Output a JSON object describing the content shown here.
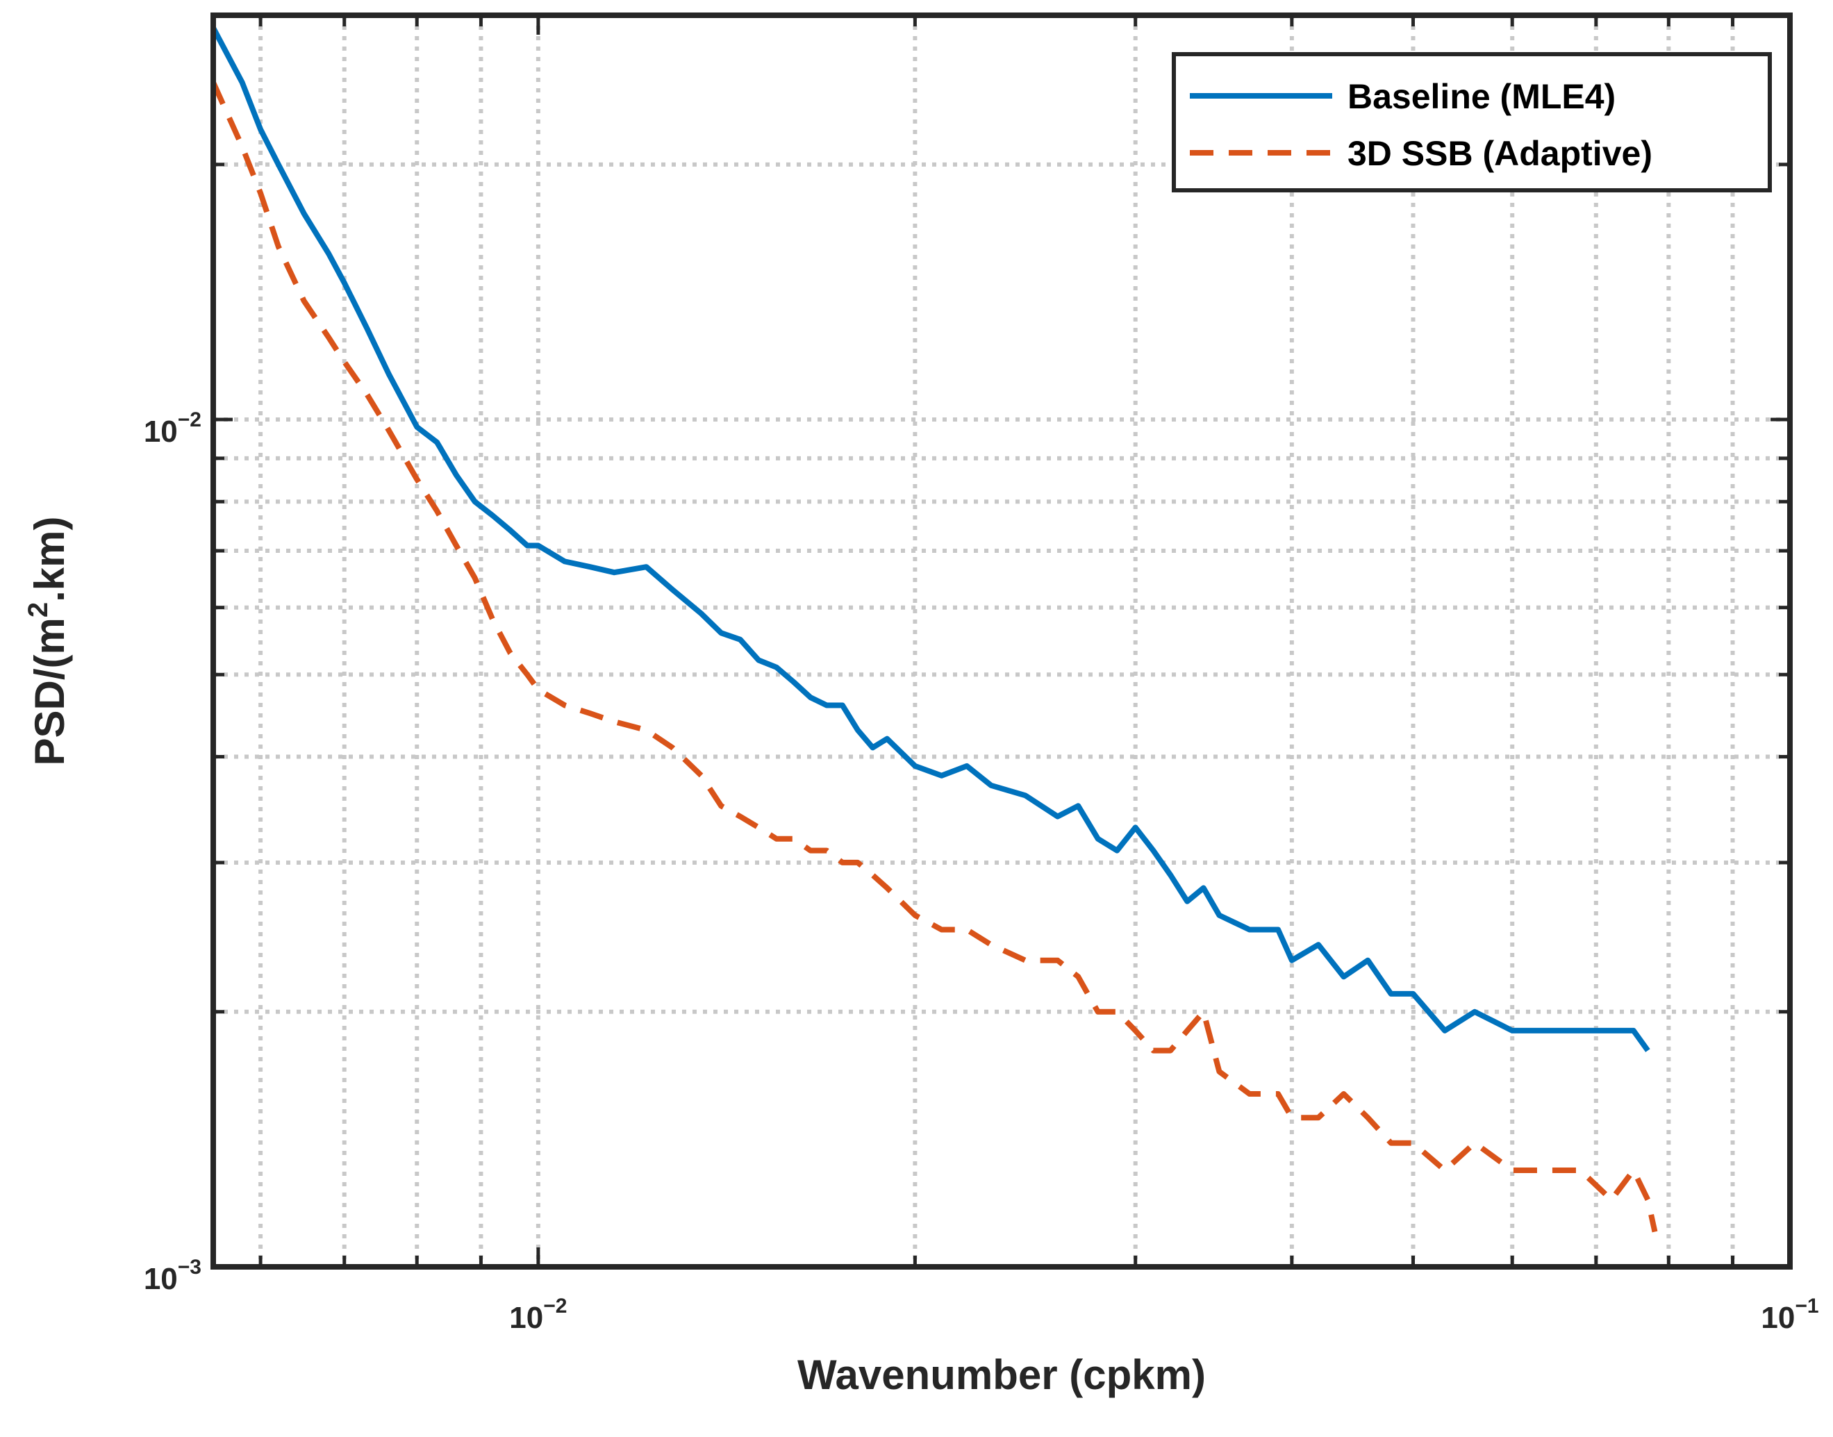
{
  "chart_data": {
    "type": "line",
    "xscale": "log",
    "yscale": "log",
    "xlim": [
      0.0055,
      0.1
    ],
    "ylim": [
      0.001,
      0.03
    ],
    "grid": true,
    "legend_position": "top-right",
    "xlabel": "Wavenumber (cpkm)",
    "ylabel_parts": {
      "pre": "PSD/(m",
      "sup": "2",
      "post": ".km)"
    },
    "x_ticks": [
      {
        "value": 0.01,
        "base": "10",
        "exp": "−2"
      },
      {
        "value": 0.1,
        "base": "10",
        "exp": "−1"
      }
    ],
    "y_ticks": [
      {
        "value": 0.001,
        "base": "10",
        "exp": "−3"
      },
      {
        "value": 0.01,
        "base": "10",
        "exp": "−2"
      }
    ],
    "series": [
      {
        "name": "Baseline (MLE4)",
        "color": "#0072BD",
        "dash": "solid",
        "x": [
          0.0055,
          0.0058,
          0.006,
          0.0062,
          0.0065,
          0.0068,
          0.007,
          0.0073,
          0.0076,
          0.008,
          0.0083,
          0.0086,
          0.0089,
          0.0092,
          0.0095,
          0.0098,
          0.01,
          0.0105,
          0.011,
          0.0115,
          0.0122,
          0.0128,
          0.0135,
          0.014,
          0.0145,
          0.015,
          0.0155,
          0.016,
          0.0165,
          0.017,
          0.0175,
          0.018,
          0.0185,
          0.019,
          0.02,
          0.021,
          0.022,
          0.023,
          0.0245,
          0.026,
          0.027,
          0.028,
          0.029,
          0.03,
          0.031,
          0.032,
          0.033,
          0.034,
          0.035,
          0.037,
          0.039,
          0.04,
          0.042,
          0.044,
          0.046,
          0.048,
          0.05,
          0.053,
          0.056,
          0.06,
          0.064,
          0.068,
          0.072,
          0.075,
          0.077
        ],
        "y": [
          0.029,
          0.025,
          0.022,
          0.02,
          0.0175,
          0.0157,
          0.0145,
          0.0128,
          0.0113,
          0.0098,
          0.0094,
          0.0086,
          0.008,
          0.0077,
          0.0074,
          0.0071,
          0.0071,
          0.0068,
          0.0067,
          0.0066,
          0.0067,
          0.0063,
          0.0059,
          0.0056,
          0.0055,
          0.0052,
          0.0051,
          0.0049,
          0.0047,
          0.0046,
          0.0046,
          0.0043,
          0.0041,
          0.0042,
          0.0039,
          0.0038,
          0.0039,
          0.0037,
          0.0036,
          0.0034,
          0.0035,
          0.0032,
          0.0031,
          0.0033,
          0.0031,
          0.0029,
          0.0027,
          0.0028,
          0.0026,
          0.0025,
          0.0025,
          0.0023,
          0.0024,
          0.0022,
          0.0023,
          0.0021,
          0.0021,
          0.0019,
          0.002,
          0.0019,
          0.0019,
          0.0019,
          0.0019,
          0.0019,
          0.0018
        ]
      },
      {
        "name": "3D SSB (Adaptive)",
        "color": "#D95319",
        "dash": "dashed",
        "x": [
          0.0055,
          0.0058,
          0.006,
          0.0062,
          0.0065,
          0.0068,
          0.007,
          0.0073,
          0.0076,
          0.008,
          0.0083,
          0.0086,
          0.0089,
          0.0092,
          0.0095,
          0.0098,
          0.01,
          0.0105,
          0.011,
          0.0115,
          0.0122,
          0.0128,
          0.0135,
          0.014,
          0.0145,
          0.015,
          0.0155,
          0.016,
          0.0165,
          0.017,
          0.0175,
          0.018,
          0.0185,
          0.019,
          0.02,
          0.021,
          0.022,
          0.023,
          0.0245,
          0.026,
          0.027,
          0.028,
          0.029,
          0.03,
          0.031,
          0.032,
          0.033,
          0.034,
          0.035,
          0.037,
          0.039,
          0.04,
          0.042,
          0.044,
          0.046,
          0.048,
          0.05,
          0.053,
          0.056,
          0.06,
          0.064,
          0.068,
          0.072,
          0.075,
          0.077,
          0.078
        ],
        "y": [
          0.025,
          0.021,
          0.0185,
          0.016,
          0.0138,
          0.0125,
          0.0117,
          0.0107,
          0.0097,
          0.0085,
          0.0078,
          0.0071,
          0.0065,
          0.0058,
          0.0053,
          0.005,
          0.0048,
          0.0046,
          0.0045,
          0.0044,
          0.0043,
          0.0041,
          0.0038,
          0.0035,
          0.0034,
          0.0033,
          0.0032,
          0.0032,
          0.0031,
          0.0031,
          0.003,
          0.003,
          0.0029,
          0.0028,
          0.0026,
          0.0025,
          0.0025,
          0.0024,
          0.0023,
          0.0023,
          0.0022,
          0.002,
          0.002,
          0.0019,
          0.0018,
          0.0018,
          0.0019,
          0.002,
          0.0017,
          0.0016,
          0.0016,
          0.0015,
          0.0015,
          0.0016,
          0.0015,
          0.0014,
          0.0014,
          0.0013,
          0.0014,
          0.0013,
          0.0013,
          0.0013,
          0.0012,
          0.0013,
          0.0012,
          0.0011
        ]
      }
    ]
  }
}
